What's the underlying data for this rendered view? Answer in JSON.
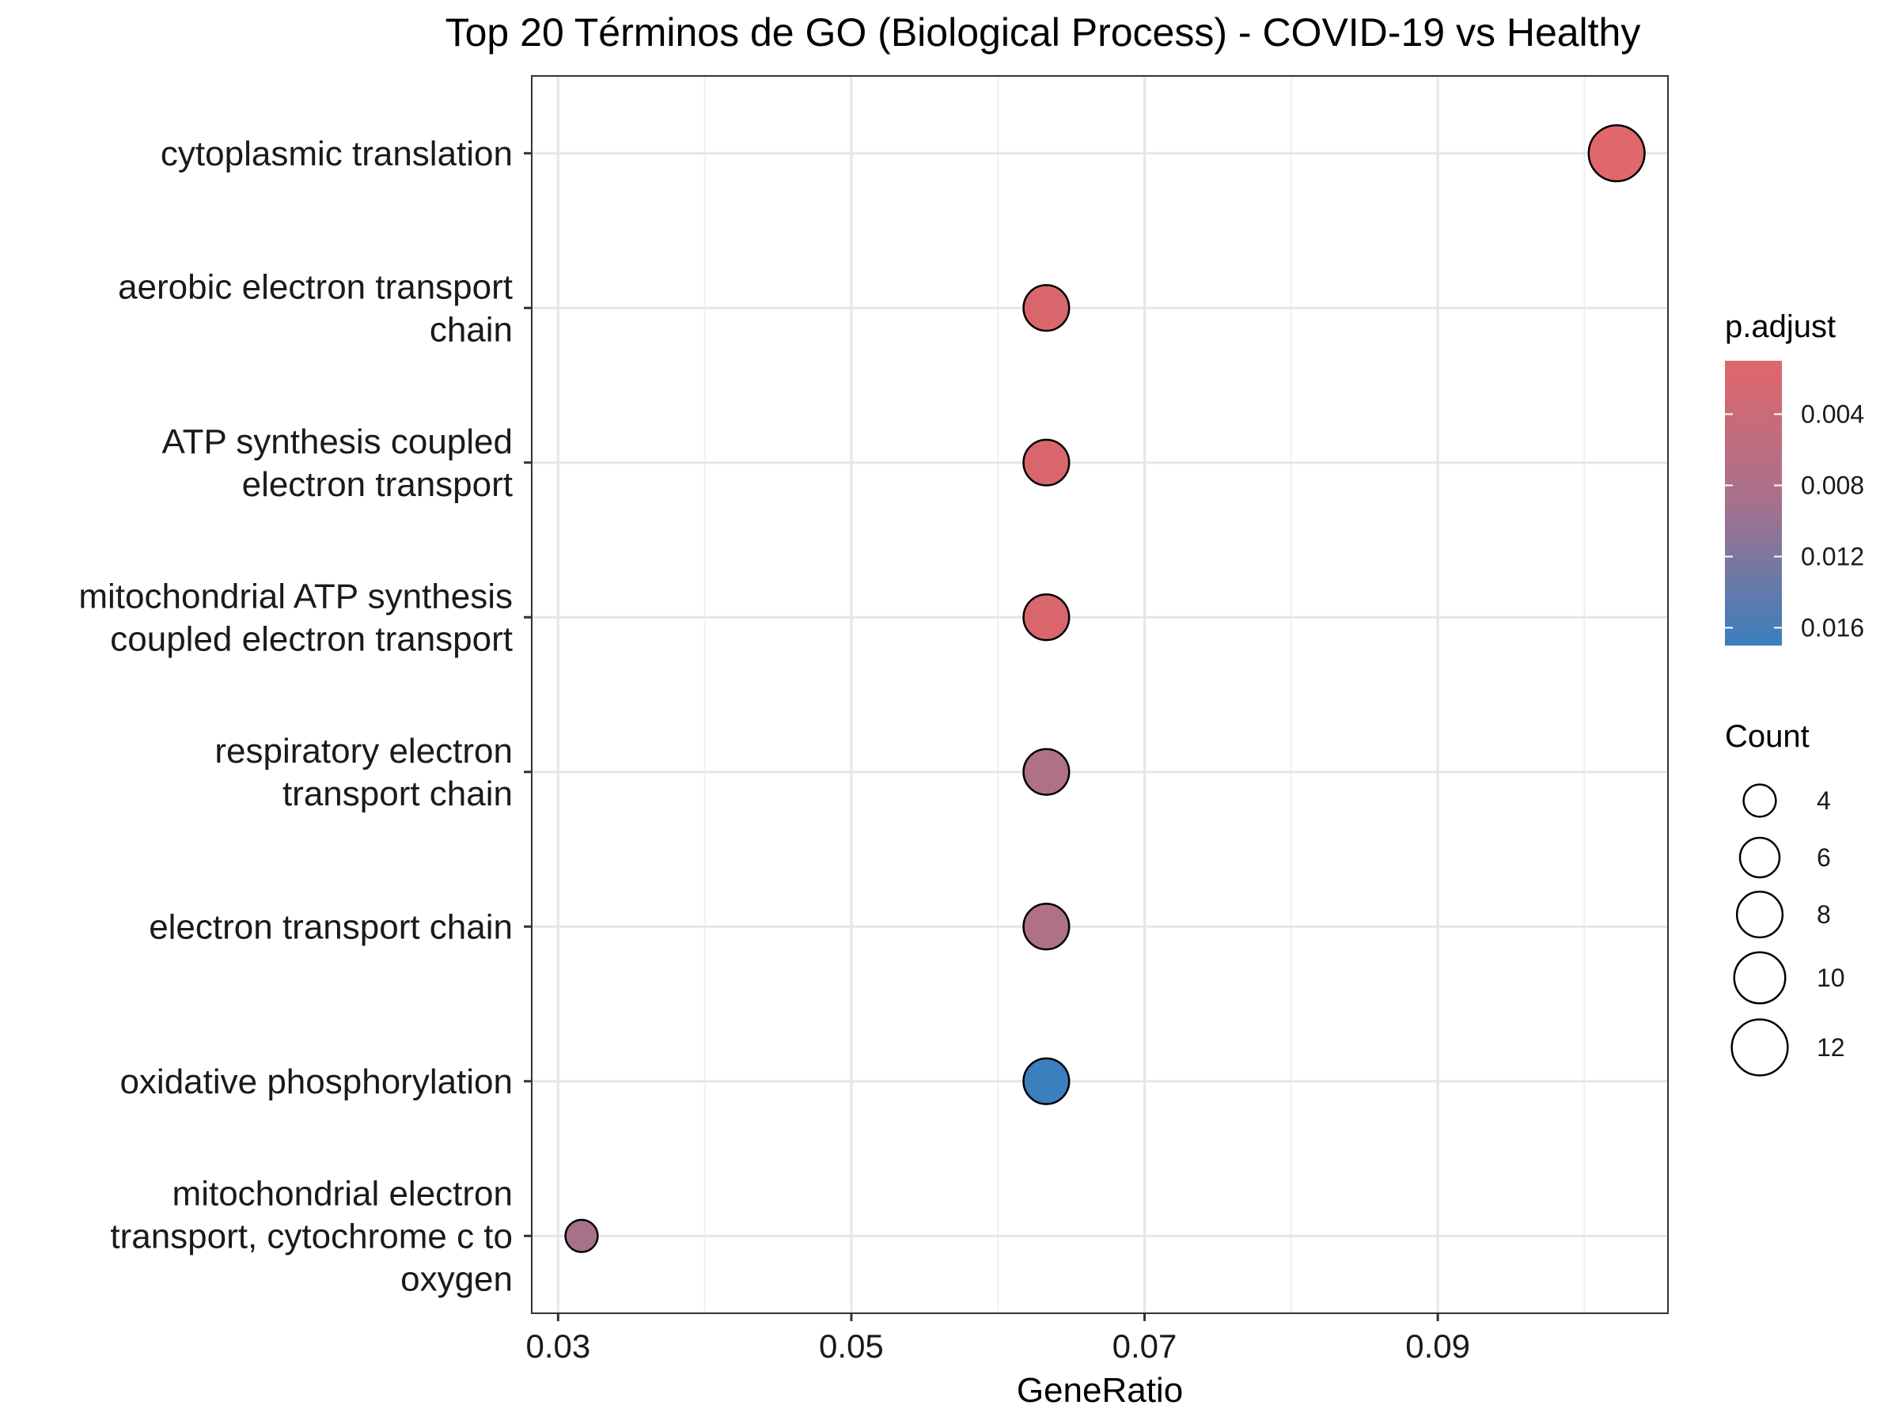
{
  "chart_data": {
    "type": "scatter",
    "title": "Top 20 Términos de GO (Biological Process) - COVID-19 vs Healthy",
    "xlabel": "GeneRatio",
    "ylabel": "",
    "xlim": [
      0.0282,
      0.1057
    ],
    "xticks": [
      0.03,
      0.05,
      0.07,
      0.09
    ],
    "xtick_labels": [
      "0.03",
      "0.05",
      "0.07",
      "0.09"
    ],
    "grid": true,
    "legend_position": "right",
    "points": [
      {
        "term": "cytoplasmic translation",
        "lines": [
          "cytoplasmic translation"
        ],
        "gene_ratio": 0.1022,
        "count": 12,
        "p_adjust": 0.001,
        "color": "#e0676a"
      },
      {
        "term": "aerobic electron transport chain",
        "lines": [
          "aerobic electron transport",
          "chain"
        ],
        "gene_ratio": 0.0633,
        "count": 8,
        "p_adjust": 0.0028,
        "color": "#d9666c"
      },
      {
        "term": "ATP synthesis coupled electron transport",
        "lines": [
          "ATP synthesis coupled",
          "electron transport"
        ],
        "gene_ratio": 0.0633,
        "count": 8,
        "p_adjust": 0.0028,
        "color": "#d9666c"
      },
      {
        "term": "mitochondrial ATP synthesis coupled electron transport",
        "lines": [
          "mitochondrial ATP synthesis",
          "coupled electron transport"
        ],
        "gene_ratio": 0.0633,
        "count": 8,
        "p_adjust": 0.0028,
        "color": "#d9666c"
      },
      {
        "term": "respiratory electron transport chain",
        "lines": [
          "respiratory electron",
          "transport chain"
        ],
        "gene_ratio": 0.0633,
        "count": 8,
        "p_adjust": 0.006,
        "color": "#ae7187"
      },
      {
        "term": "electron transport chain",
        "lines": [
          "electron transport chain"
        ],
        "gene_ratio": 0.0633,
        "count": 8,
        "p_adjust": 0.006,
        "color": "#ae7187"
      },
      {
        "term": "oxidative phosphorylation",
        "lines": [
          "oxidative phosphorylation"
        ],
        "gene_ratio": 0.0633,
        "count": 8,
        "p_adjust": 0.017,
        "color": "#3a7fbe"
      },
      {
        "term": "mitochondrial electron transport, cytochrome c to oxygen",
        "lines": [
          "mitochondrial electron",
          "transport, cytochrome c to",
          "oxygen"
        ],
        "gene_ratio": 0.0316,
        "count": 4,
        "p_adjust": 0.0068,
        "color": "#a7718a"
      }
    ],
    "legend_color": {
      "title": "p.adjust",
      "min": 0.001,
      "max": 0.017,
      "ticks": [
        0.004,
        0.008,
        0.012,
        0.016
      ],
      "tick_labels": [
        "0.004",
        "0.008",
        "0.012",
        "0.016"
      ],
      "low_color": "#e0676a",
      "high_color": "#3a7fbe"
    },
    "legend_size": {
      "title": "Count",
      "values": [
        4,
        6,
        8,
        10,
        12
      ],
      "labels": [
        "4",
        "6",
        "8",
        "10",
        "12"
      ]
    }
  }
}
